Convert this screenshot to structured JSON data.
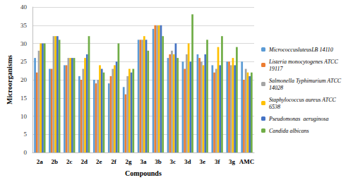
{
  "chart_data": {
    "type": "bar",
    "x_label": "Compounds",
    "y_label": "Microorganisms",
    "categories": [
      "2a",
      "2b",
      "2c",
      "2d",
      "2e",
      "2f",
      "2g",
      "3a",
      "3b",
      "3c",
      "3d",
      "3e",
      "3f",
      "3g",
      "AMC"
    ],
    "series": [
      {
        "name": "MicrococcusluteusLB 14110",
        "color": "#5b9bd5",
        "values": [
          26,
          23,
          24,
          21,
          20,
          19,
          18,
          31,
          34,
          26,
          25,
          27,
          24,
          25,
          25
        ]
      },
      {
        "name": "Listeria monocytogenes ATCC 19117",
        "color": "#ed7d31",
        "values": [
          22,
          23,
          24,
          20,
          19,
          21,
          16,
          31,
          35,
          27,
          23,
          26,
          22,
          25,
          20
        ]
      },
      {
        "name": "Salmonella Typhimurium ATCC 14028",
        "color": "#a5a5a5",
        "values": [
          28,
          32,
          26,
          23,
          20,
          23,
          21,
          31,
          35,
          28,
          27,
          25,
          23,
          24,
          23
        ]
      },
      {
        "name": "Staphylococcus aureus ATCC 6538",
        "color": "#ffc000",
        "values": [
          30,
          32,
          26,
          26,
          24,
          24,
          23,
          32,
          35,
          27,
          30,
          24,
          29,
          26,
          22
        ]
      },
      {
        "name": "Pseudomonas  aeruginosa",
        "color": "#4472c4",
        "values": [
          30,
          32,
          26,
          27,
          23,
          25,
          22,
          31,
          35,
          30,
          25,
          27,
          24,
          24,
          21
        ]
      },
      {
        "name": "Candida albicans",
        "color": "#70ad47",
        "values": [
          30,
          31,
          26,
          32,
          22,
          30,
          23,
          28,
          32,
          26,
          38,
          31,
          32,
          29,
          22
        ]
      }
    ],
    "ylim": [
      0,
      40
    ],
    "yticks": [
      0,
      5,
      10,
      15,
      20,
      25,
      30,
      35,
      40
    ],
    "grid": true,
    "legend": "right"
  }
}
